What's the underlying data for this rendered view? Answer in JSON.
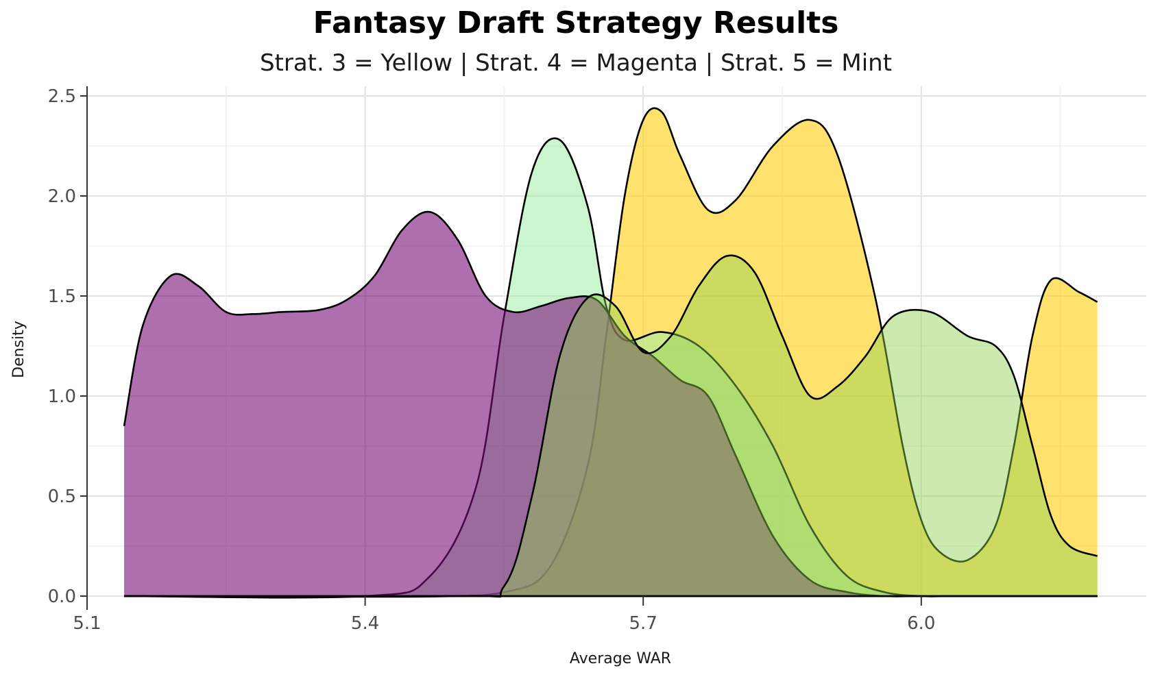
{
  "chart_data": {
    "type": "area",
    "title": "Fantasy Draft Strategy Results",
    "subtitle": "Strat. 3 = Yellow | Strat. 4 = Magenta | Strat. 5 = Mint",
    "xlabel": "Average WAR",
    "ylabel": "Density",
    "xlim": [
      5.1,
      6.25
    ],
    "ylim": [
      0,
      2.5
    ],
    "x_ticks": [
      "5.1",
      "5.4",
      "5.7",
      "6.0"
    ],
    "y_ticks": [
      "0.0",
      "0.5",
      "1.0",
      "1.5",
      "2.0",
      "2.5"
    ],
    "grid": true,
    "legend": "none",
    "series": [
      {
        "color": "#FFD21F",
        "opacity": 0.65,
        "x": [
          5.14,
          5.45,
          5.55,
          5.6,
          5.64,
          5.66,
          5.68,
          5.7,
          5.72,
          5.74,
          5.77,
          5.8,
          5.84,
          5.88,
          5.91,
          5.95,
          5.98,
          6.0,
          6.02,
          6.05,
          6.08,
          6.1,
          6.12,
          6.14,
          6.17,
          6.19
        ],
        "y": [
          0,
          0,
          0.02,
          0.15,
          0.65,
          1.3,
          2.0,
          2.38,
          2.42,
          2.2,
          1.93,
          1.98,
          2.25,
          2.38,
          2.2,
          1.5,
          0.75,
          0.38,
          0.22,
          0.18,
          0.35,
          0.75,
          1.3,
          1.58,
          1.52,
          1.47
        ]
      },
      {
        "color": "#A1EDA8",
        "opacity": 0.55,
        "x": [
          5.14,
          5.4,
          5.47,
          5.52,
          5.55,
          5.58,
          5.61,
          5.64,
          5.66,
          5.68,
          5.72,
          5.76,
          5.8,
          5.84,
          5.88,
          5.92,
          5.96,
          6.0,
          6.03,
          6.06,
          6.09,
          6.12,
          6.15,
          6.17,
          6.19
        ],
        "y": [
          0,
          0,
          0.1,
          0.55,
          1.4,
          2.12,
          2.28,
          1.95,
          1.45,
          1.28,
          1.32,
          1.25,
          1.05,
          0.75,
          0.35,
          0.1,
          0.02,
          0,
          0,
          0,
          0,
          0,
          0,
          0,
          0
        ]
      },
      {
        "color": "#7A0F7A",
        "opacity": 0.6,
        "x": [
          5.14,
          5.16,
          5.19,
          5.22,
          5.25,
          5.28,
          5.31,
          5.35,
          5.38,
          5.41,
          5.44,
          5.47,
          5.5,
          5.53,
          5.56,
          5.59,
          5.62,
          5.65,
          5.68,
          5.71,
          5.74,
          5.77,
          5.8,
          5.84,
          5.88,
          5.92,
          5.96,
          6.0,
          6.05,
          6.1,
          6.19
        ],
        "y": [
          0.85,
          1.35,
          1.6,
          1.55,
          1.42,
          1.41,
          1.42,
          1.43,
          1.48,
          1.6,
          1.83,
          1.92,
          1.78,
          1.5,
          1.42,
          1.45,
          1.49,
          1.48,
          1.3,
          1.2,
          1.08,
          1.0,
          0.7,
          0.3,
          0.08,
          0.02,
          0,
          0,
          0,
          0,
          0
        ]
      },
      {
        "color": "#8FD14F",
        "opacity": 0.45,
        "x": [
          5.14,
          5.5,
          5.55,
          5.58,
          5.61,
          5.64,
          5.67,
          5.7,
          5.73,
          5.76,
          5.79,
          5.82,
          5.85,
          5.88,
          5.91,
          5.94,
          5.97,
          6.01,
          6.05,
          6.08,
          6.1,
          6.12,
          6.14,
          6.16,
          6.19
        ],
        "y": [
          0,
          0,
          0.05,
          0.5,
          1.2,
          1.49,
          1.45,
          1.22,
          1.3,
          1.55,
          1.7,
          1.62,
          1.3,
          1.0,
          1.05,
          1.2,
          1.4,
          1.42,
          1.3,
          1.25,
          1.1,
          0.75,
          0.4,
          0.25,
          0.2
        ]
      }
    ]
  }
}
